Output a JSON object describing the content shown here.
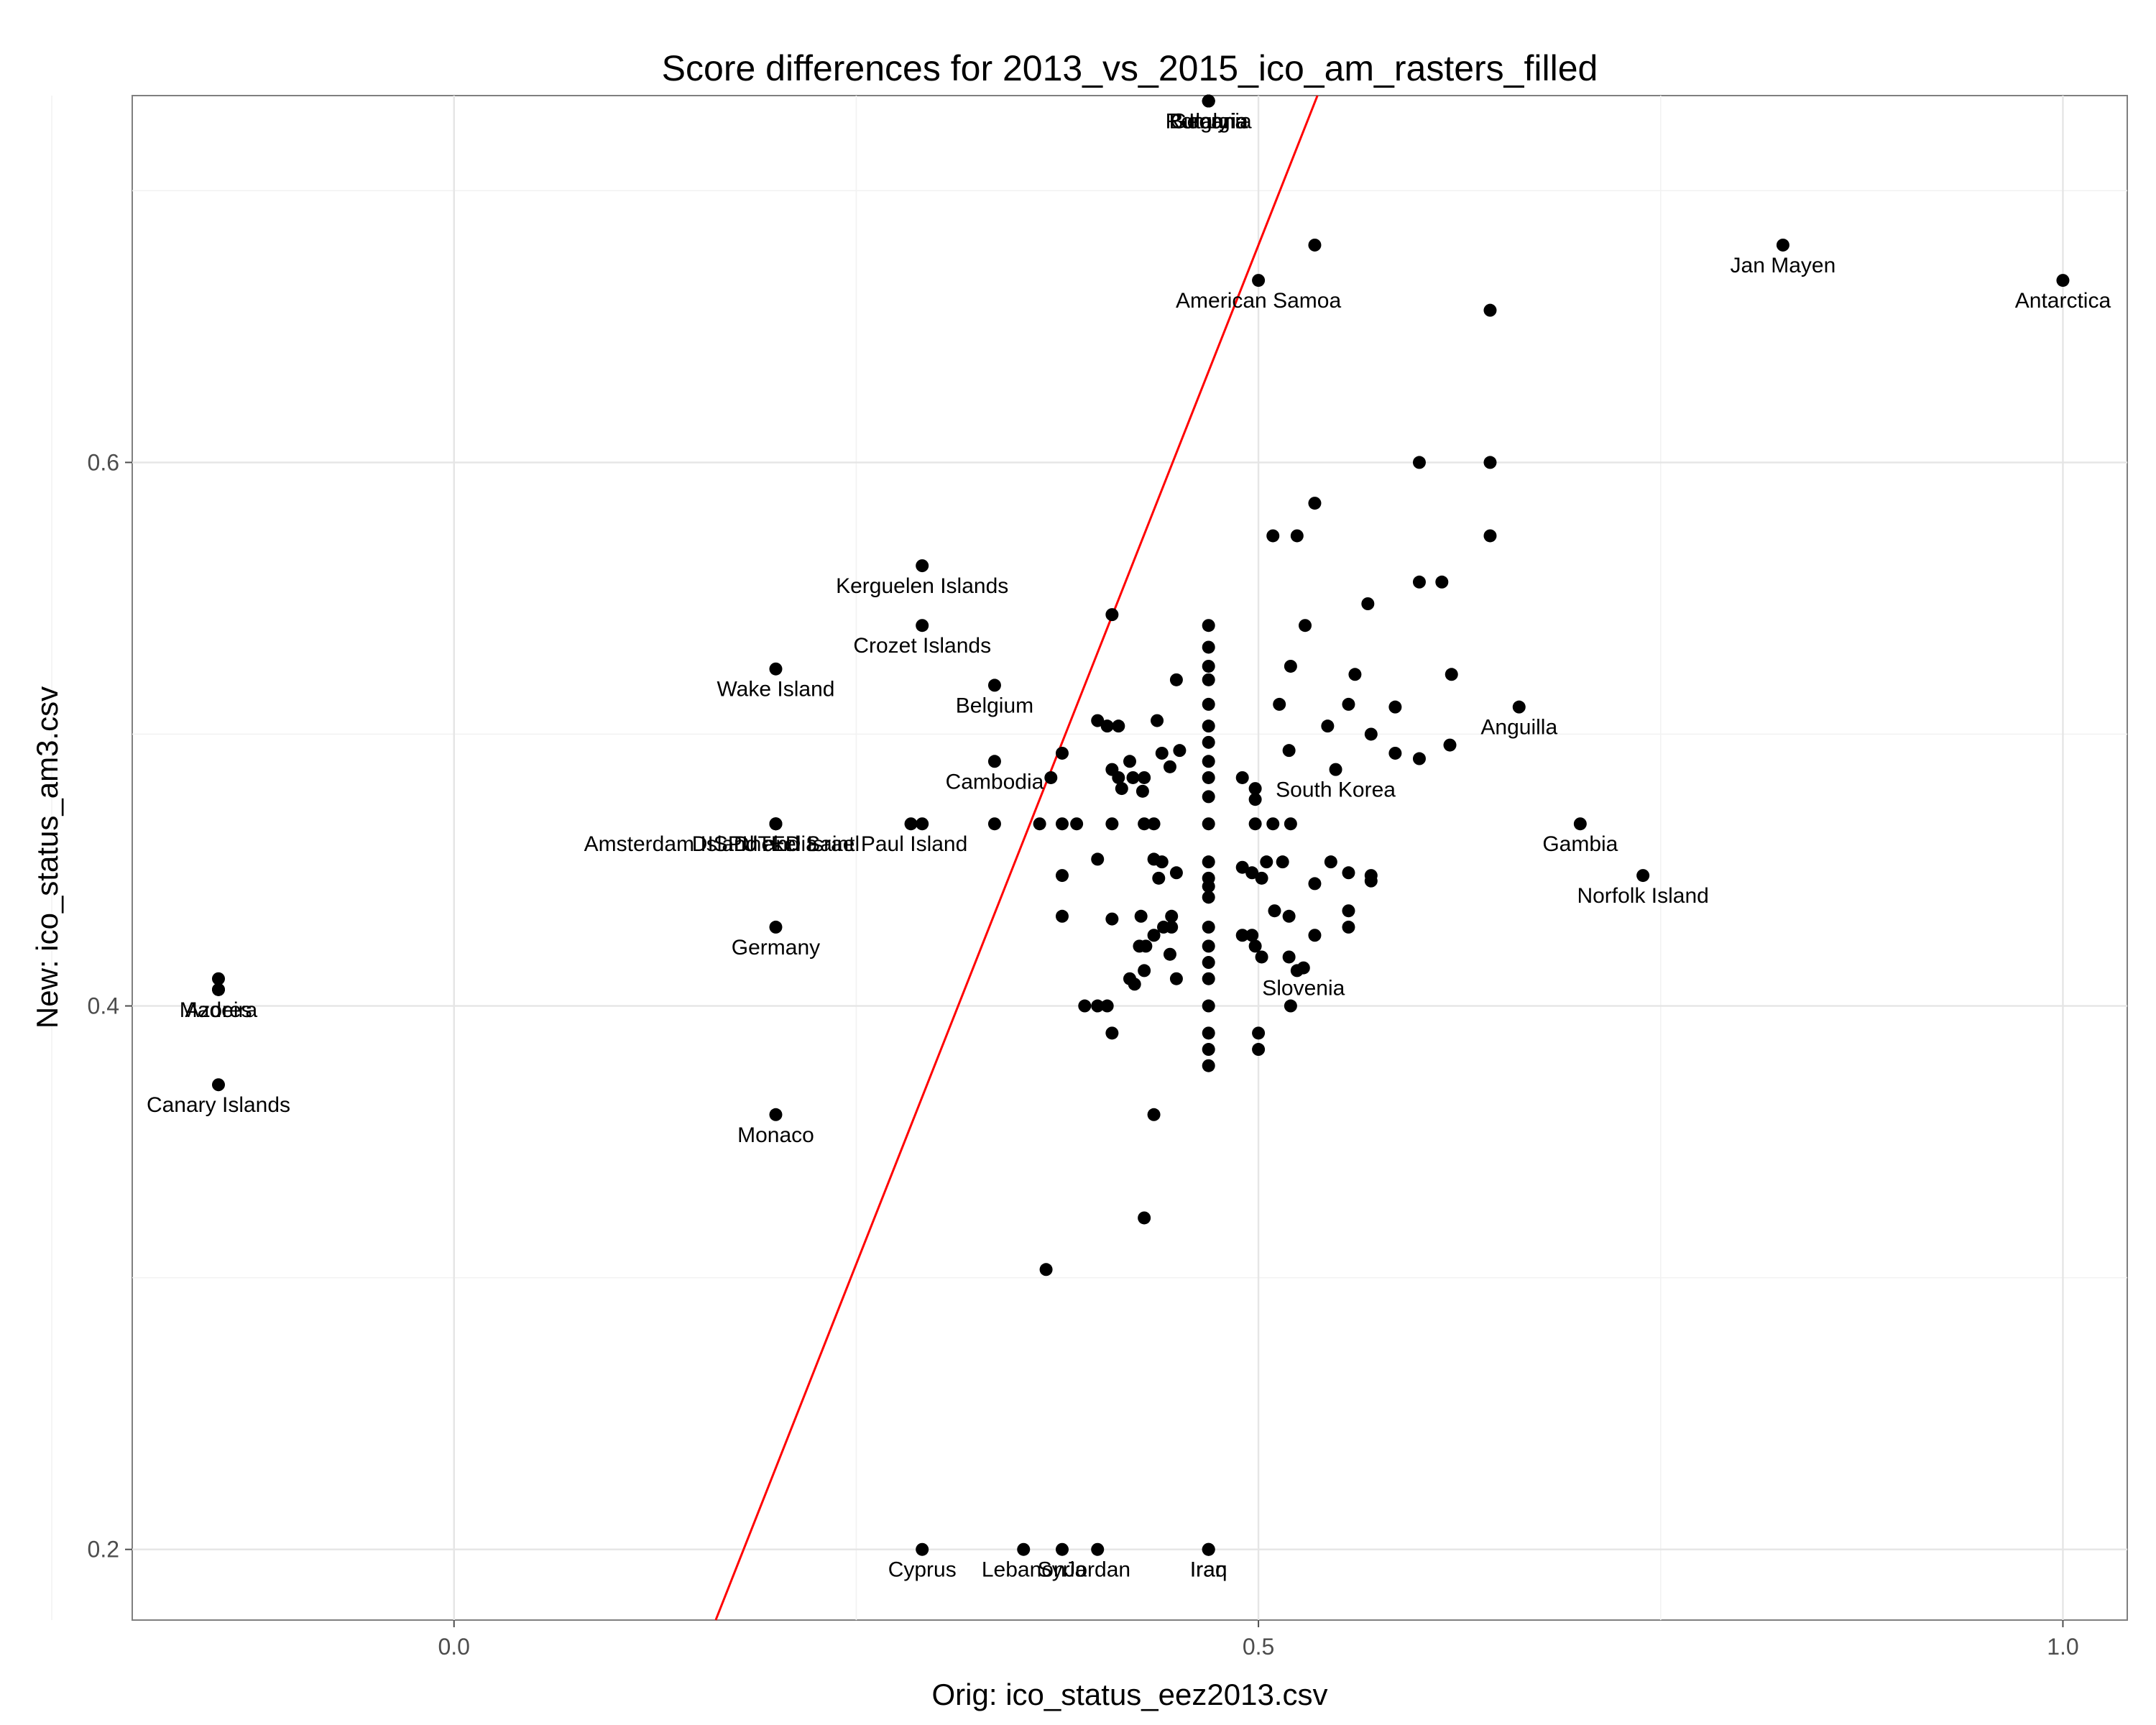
{
  "chart_data": {
    "type": "scatter",
    "title": "Score differences for 2013_vs_2015_ico_am_rasters_filled",
    "xlabel": "Orig: ico_status_eez2013.csv",
    "ylabel": "New: ico_status_am3.csv",
    "xlim": [
      -0.2,
      1.04
    ],
    "ylim": [
      0.174,
      0.735
    ],
    "xticks": [
      0.0,
      0.5,
      1.0
    ],
    "xtick_labels": [
      "0.0",
      "0.5",
      "1.0"
    ],
    "yticks": [
      0.2,
      0.4,
      0.6
    ],
    "ytick_labels": [
      "0.2",
      "0.4",
      "0.6"
    ],
    "grid": true,
    "point_color": "#000000",
    "reference_line": {
      "color": "#ff0000",
      "slope": 1.5,
      "intercept": -0.07
    },
    "series": [
      {
        "points": [
          {
            "x": 0.469,
            "y": 0.733,
            "label": "Bulgaria"
          },
          {
            "x": 0.469,
            "y": 0.733,
            "label": "Romania"
          },
          {
            "x": 0.469,
            "y": 0.733,
            "label": "Italy"
          },
          {
            "x": 0.469,
            "y": 0.733,
            "label": "Georgia"
          },
          {
            "x": 0.535,
            "y": 0.68
          },
          {
            "x": 0.5,
            "y": 0.667,
            "label": "American Samoa"
          },
          {
            "x": 0.644,
            "y": 0.656
          },
          {
            "x": 0.826,
            "y": 0.68,
            "label": "Jan Mayen"
          },
          {
            "x": 1.0,
            "y": 0.667,
            "label": "Antarctica"
          },
          {
            "x": 0.6,
            "y": 0.6
          },
          {
            "x": 0.644,
            "y": 0.6
          },
          {
            "x": 0.535,
            "y": 0.585
          },
          {
            "x": 0.524,
            "y": 0.573
          },
          {
            "x": 0.509,
            "y": 0.573
          },
          {
            "x": 0.644,
            "y": 0.573
          },
          {
            "x": 0.6,
            "y": 0.556
          },
          {
            "x": 0.614,
            "y": 0.556
          },
          {
            "x": 0.568,
            "y": 0.548
          },
          {
            "x": 0.291,
            "y": 0.562,
            "label": "Kerguelen Islands"
          },
          {
            "x": 0.291,
            "y": 0.54,
            "label": "Crozet Islands"
          },
          {
            "x": 0.2,
            "y": 0.524,
            "label": "Wake Island"
          },
          {
            "x": 0.336,
            "y": 0.518,
            "label": "Belgium"
          },
          {
            "x": 0.336,
            "y": 0.49,
            "label": "Cambodia"
          },
          {
            "x": 0.2,
            "y": 0.467,
            "label": "Amsterdam Island and Saint Paul Island"
          },
          {
            "x": 0.2,
            "y": 0.467,
            "label": "DISPUTED Israel"
          },
          {
            "x": 0.2,
            "y": 0.467,
            "label": "Dhekelia"
          },
          {
            "x": 0.2,
            "y": 0.429,
            "label": "Germany"
          },
          {
            "x": 0.2,
            "y": 0.36,
            "label": "Monaco"
          },
          {
            "x": 0.662,
            "y": 0.51,
            "label": "Anguilla"
          },
          {
            "x": 0.548,
            "y": 0.487,
            "label": "South Korea"
          },
          {
            "x": 0.7,
            "y": 0.467,
            "label": "Gambia"
          },
          {
            "x": 0.739,
            "y": 0.448,
            "label": "Norfolk Island"
          },
          {
            "x": 0.528,
            "y": 0.414,
            "label": "Slovenia"
          },
          {
            "x": -0.333,
            "y": 0.41
          },
          {
            "x": -0.333,
            "y": 0.406,
            "label": "Azores"
          },
          {
            "x": -0.333,
            "y": 0.406,
            "label": "Madeira"
          },
          {
            "x": -0.333,
            "y": 0.371,
            "label": "Canary Islands"
          },
          {
            "x": 0.291,
            "y": 0.2,
            "label": "Cyprus"
          },
          {
            "x": 0.354,
            "y": 0.2,
            "label": "Lebanon"
          },
          {
            "x": 0.378,
            "y": 0.2,
            "label": "Syria"
          },
          {
            "x": 0.4,
            "y": 0.2,
            "label": "Jordan"
          },
          {
            "x": 0.469,
            "y": 0.2,
            "label": "Iraq"
          },
          {
            "x": 0.469,
            "y": 0.2,
            "label": "Iran"
          },
          {
            "x": 0.409,
            "y": 0.544
          },
          {
            "x": 0.469,
            "y": 0.54
          },
          {
            "x": 0.469,
            "y": 0.532
          },
          {
            "x": 0.469,
            "y": 0.525
          },
          {
            "x": 0.469,
            "y": 0.52
          },
          {
            "x": 0.469,
            "y": 0.511
          },
          {
            "x": 0.469,
            "y": 0.503
          },
          {
            "x": 0.469,
            "y": 0.497
          },
          {
            "x": 0.469,
            "y": 0.49
          },
          {
            "x": 0.469,
            "y": 0.484
          },
          {
            "x": 0.469,
            "y": 0.477
          },
          {
            "x": 0.449,
            "y": 0.52
          },
          {
            "x": 0.437,
            "y": 0.505
          },
          {
            "x": 0.4,
            "y": 0.505
          },
          {
            "x": 0.406,
            "y": 0.503
          },
          {
            "x": 0.413,
            "y": 0.503
          },
          {
            "x": 0.378,
            "y": 0.493
          },
          {
            "x": 0.42,
            "y": 0.49
          },
          {
            "x": 0.44,
            "y": 0.493
          },
          {
            "x": 0.451,
            "y": 0.494
          },
          {
            "x": 0.445,
            "y": 0.488
          },
          {
            "x": 0.409,
            "y": 0.487
          },
          {
            "x": 0.413,
            "y": 0.484
          },
          {
            "x": 0.422,
            "y": 0.484
          },
          {
            "x": 0.429,
            "y": 0.484
          },
          {
            "x": 0.371,
            "y": 0.484
          },
          {
            "x": 0.415,
            "y": 0.48
          },
          {
            "x": 0.428,
            "y": 0.479
          },
          {
            "x": 0.49,
            "y": 0.484
          },
          {
            "x": 0.498,
            "y": 0.48
          },
          {
            "x": 0.498,
            "y": 0.476
          },
          {
            "x": 0.529,
            "y": 0.54
          },
          {
            "x": 0.513,
            "y": 0.511
          },
          {
            "x": 0.52,
            "y": 0.525
          },
          {
            "x": 0.56,
            "y": 0.522
          },
          {
            "x": 0.519,
            "y": 0.494
          },
          {
            "x": 0.543,
            "y": 0.503
          },
          {
            "x": 0.556,
            "y": 0.511
          },
          {
            "x": 0.57,
            "y": 0.5
          },
          {
            "x": 0.585,
            "y": 0.51
          },
          {
            "x": 0.585,
            "y": 0.493
          },
          {
            "x": 0.6,
            "y": 0.491
          },
          {
            "x": 0.619,
            "y": 0.496
          },
          {
            "x": 0.62,
            "y": 0.522
          },
          {
            "x": 0.284,
            "y": 0.467
          },
          {
            "x": 0.291,
            "y": 0.467
          },
          {
            "x": 0.336,
            "y": 0.467
          },
          {
            "x": 0.364,
            "y": 0.467
          },
          {
            "x": 0.378,
            "y": 0.467
          },
          {
            "x": 0.387,
            "y": 0.467
          },
          {
            "x": 0.409,
            "y": 0.467
          },
          {
            "x": 0.429,
            "y": 0.467
          },
          {
            "x": 0.435,
            "y": 0.467
          },
          {
            "x": 0.469,
            "y": 0.467
          },
          {
            "x": 0.498,
            "y": 0.467
          },
          {
            "x": 0.509,
            "y": 0.467
          },
          {
            "x": 0.52,
            "y": 0.467
          },
          {
            "x": 0.4,
            "y": 0.454
          },
          {
            "x": 0.435,
            "y": 0.454
          },
          {
            "x": 0.44,
            "y": 0.453
          },
          {
            "x": 0.469,
            "y": 0.453
          },
          {
            "x": 0.378,
            "y": 0.448
          },
          {
            "x": 0.449,
            "y": 0.449
          },
          {
            "x": 0.438,
            "y": 0.447
          },
          {
            "x": 0.469,
            "y": 0.447
          },
          {
            "x": 0.469,
            "y": 0.444
          },
          {
            "x": 0.469,
            "y": 0.44
          },
          {
            "x": 0.49,
            "y": 0.451
          },
          {
            "x": 0.496,
            "y": 0.449
          },
          {
            "x": 0.502,
            "y": 0.447
          },
          {
            "x": 0.505,
            "y": 0.453
          },
          {
            "x": 0.515,
            "y": 0.453
          },
          {
            "x": 0.535,
            "y": 0.445
          },
          {
            "x": 0.545,
            "y": 0.453
          },
          {
            "x": 0.556,
            "y": 0.449
          },
          {
            "x": 0.57,
            "y": 0.448
          },
          {
            "x": 0.57,
            "y": 0.446
          },
          {
            "x": 0.378,
            "y": 0.433
          },
          {
            "x": 0.409,
            "y": 0.432
          },
          {
            "x": 0.427,
            "y": 0.433
          },
          {
            "x": 0.446,
            "y": 0.433
          },
          {
            "x": 0.446,
            "y": 0.429
          },
          {
            "x": 0.441,
            "y": 0.429
          },
          {
            "x": 0.435,
            "y": 0.426
          },
          {
            "x": 0.43,
            "y": 0.422
          },
          {
            "x": 0.426,
            "y": 0.422
          },
          {
            "x": 0.445,
            "y": 0.419
          },
          {
            "x": 0.429,
            "y": 0.413
          },
          {
            "x": 0.42,
            "y": 0.41
          },
          {
            "x": 0.423,
            "y": 0.408
          },
          {
            "x": 0.449,
            "y": 0.41
          },
          {
            "x": 0.469,
            "y": 0.429
          },
          {
            "x": 0.469,
            "y": 0.422
          },
          {
            "x": 0.469,
            "y": 0.416
          },
          {
            "x": 0.469,
            "y": 0.41
          },
          {
            "x": 0.469,
            "y": 0.4
          },
          {
            "x": 0.469,
            "y": 0.39
          },
          {
            "x": 0.469,
            "y": 0.384
          },
          {
            "x": 0.469,
            "y": 0.378
          },
          {
            "x": 0.49,
            "y": 0.426
          },
          {
            "x": 0.496,
            "y": 0.426
          },
          {
            "x": 0.498,
            "y": 0.422
          },
          {
            "x": 0.502,
            "y": 0.418
          },
          {
            "x": 0.51,
            "y": 0.435
          },
          {
            "x": 0.519,
            "y": 0.433
          },
          {
            "x": 0.519,
            "y": 0.418
          },
          {
            "x": 0.524,
            "y": 0.413
          },
          {
            "x": 0.535,
            "y": 0.426
          },
          {
            "x": 0.556,
            "y": 0.435
          },
          {
            "x": 0.556,
            "y": 0.429
          },
          {
            "x": 0.52,
            "y": 0.4
          },
          {
            "x": 0.392,
            "y": 0.4
          },
          {
            "x": 0.4,
            "y": 0.4
          },
          {
            "x": 0.406,
            "y": 0.4
          },
          {
            "x": 0.409,
            "y": 0.39
          },
          {
            "x": 0.5,
            "y": 0.39
          },
          {
            "x": 0.5,
            "y": 0.384
          },
          {
            "x": 0.435,
            "y": 0.36
          },
          {
            "x": 0.429,
            "y": 0.322
          },
          {
            "x": 0.368,
            "y": 0.303
          }
        ]
      }
    ]
  }
}
